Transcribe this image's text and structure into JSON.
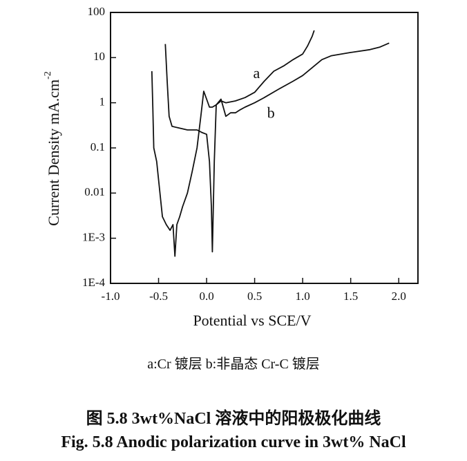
{
  "chart_data": {
    "type": "line",
    "log_y": true,
    "xlabel": "Potential vs SCE/V",
    "ylabel": "Current Density mA.cm",
    "ylabel_superscript": "-2",
    "xlim": [
      -1.0,
      2.2
    ],
    "ylim": [
      0.0001,
      100
    ],
    "xticks": [
      {
        "value": -1,
        "label": "-1.0"
      },
      -0.5,
      {
        "value": 0,
        "label": "0.0"
      },
      0.5,
      {
        "value": 1,
        "label": "1.0"
      },
      1.5,
      {
        "value": 2,
        "label": "2.0"
      }
    ],
    "yticks": [
      {
        "value": 0.0001,
        "label": "1E-4"
      },
      {
        "value": 0.001,
        "label": "1E-3"
      },
      0.01,
      0.1,
      1,
      10,
      100
    ],
    "series": [
      {
        "name": "a",
        "color": "#111111",
        "x": [
          -0.43,
          -0.41,
          -0.39,
          -0.36,
          -0.3,
          -0.2,
          -0.1,
          -0.05,
          0.0,
          0.03,
          0.05,
          0.06,
          0.08,
          0.1,
          0.15,
          0.2,
          0.3,
          0.4,
          0.5,
          0.6,
          0.7,
          0.8,
          0.9,
          1.0,
          1.05,
          1.1,
          1.12
        ],
        "values": [
          20,
          3,
          0.5,
          0.3,
          0.28,
          0.25,
          0.25,
          0.22,
          0.2,
          0.05,
          0.005,
          0.0005,
          0.05,
          0.9,
          1.1,
          1.0,
          1.1,
          1.3,
          1.7,
          3,
          5,
          6.5,
          9,
          12,
          18,
          30,
          40
        ]
      },
      {
        "name": "b",
        "color": "#111111",
        "x": [
          -0.57,
          -0.56,
          -0.55,
          -0.52,
          -0.5,
          -0.46,
          -0.42,
          -0.38,
          -0.35,
          -0.33,
          -0.31,
          -0.28,
          -0.25,
          -0.2,
          -0.15,
          -0.1,
          -0.06,
          -0.03,
          0.0,
          0.03,
          0.06,
          0.1,
          0.15,
          0.2,
          0.25,
          0.3,
          0.35,
          0.4,
          0.5,
          0.6,
          0.75,
          0.9,
          1.0,
          1.1,
          1.2,
          1.3,
          1.5,
          1.7,
          1.8,
          1.9
        ],
        "values": [
          5,
          0.8,
          0.1,
          0.05,
          0.02,
          0.003,
          0.002,
          0.0015,
          0.002,
          0.0004,
          0.002,
          0.003,
          0.005,
          0.01,
          0.03,
          0.1,
          0.5,
          1.8,
          1.2,
          0.8,
          0.8,
          0.9,
          1.2,
          0.5,
          0.6,
          0.6,
          0.7,
          0.8,
          1.0,
          1.3,
          2,
          3,
          4,
          6,
          9,
          11,
          13,
          15,
          17,
          21
        ]
      }
    ]
  },
  "caption": {
    "legend": "a:Cr 镀层   b:非晶态 Cr-C 镀层",
    "title_cn": "图 5.8   3wt%NaCl 溶液中的阳极极化曲线",
    "title_en": "Fig. 5.8 Anodic polarization curve in 3wt% NaCl"
  }
}
